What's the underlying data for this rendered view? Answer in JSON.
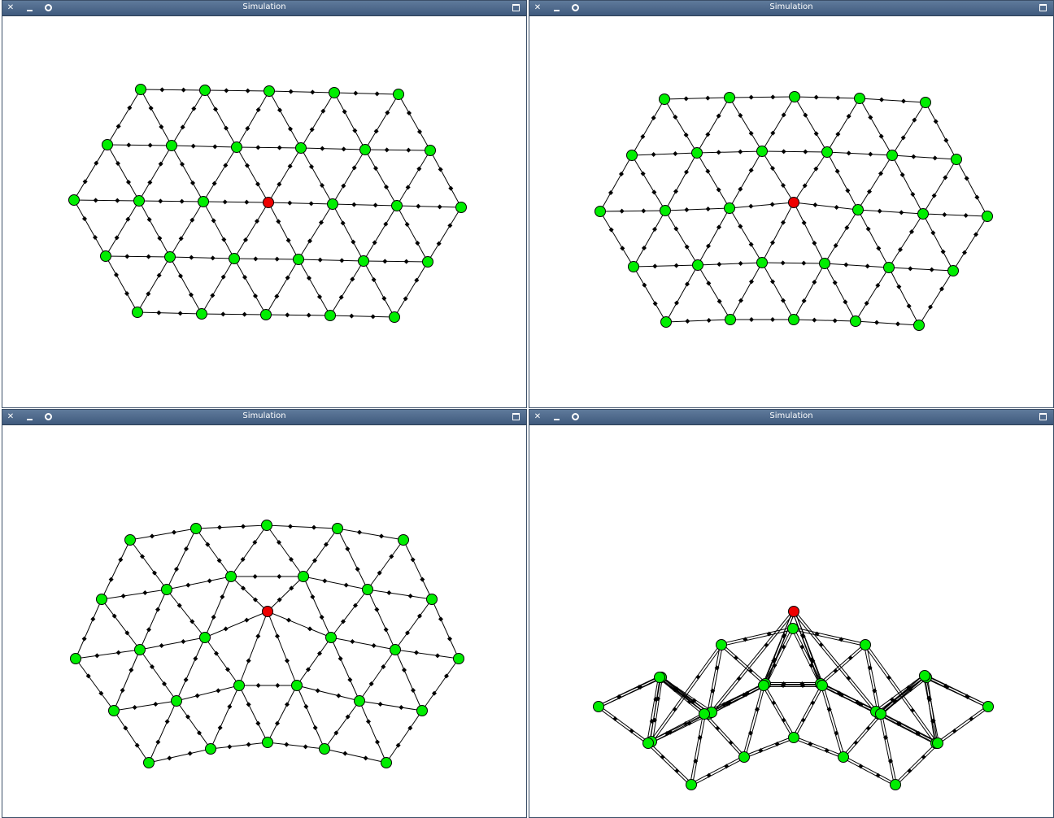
{
  "colors": {
    "titlebar": "#4a6688",
    "node_fixed": "#00ee00",
    "node_active": "#ee0000",
    "spring": "#000000"
  },
  "icons": {
    "close": "close-icon",
    "minimize": "minimize-icon",
    "options": "options-icon",
    "maximize": "maximize-icon"
  },
  "windows": [
    {
      "title": "Simulation"
    },
    {
      "title": "Simulation"
    },
    {
      "title": "Simulation"
    },
    {
      "title": "Simulation"
    }
  ]
}
